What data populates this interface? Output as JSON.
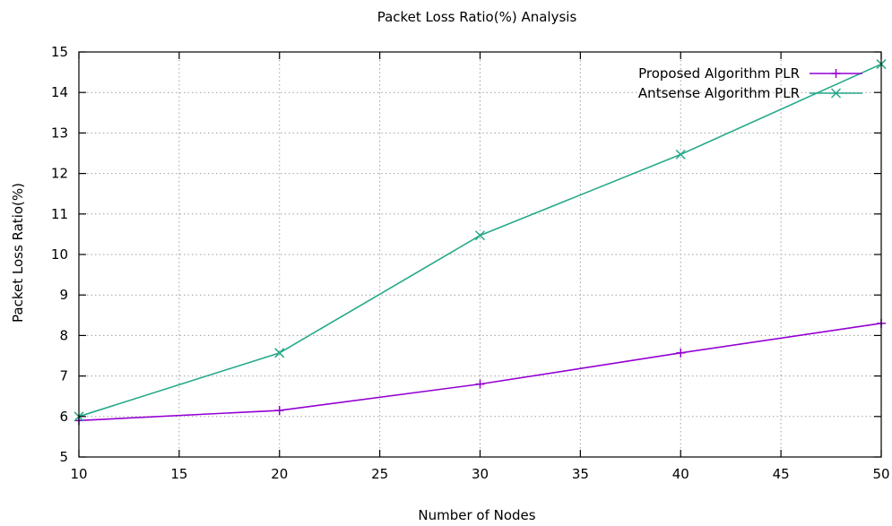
{
  "chart_data": {
    "type": "line",
    "title": "Packet Loss Ratio(%) Analysis",
    "xlabel": "Number of Nodes",
    "ylabel": "Packet Loss Ratio(%)",
    "xlim": [
      10,
      50
    ],
    "ylim": [
      5,
      15
    ],
    "xticks": [
      10,
      15,
      20,
      25,
      30,
      35,
      40,
      45,
      50
    ],
    "yticks": [
      5,
      6,
      7,
      8,
      9,
      10,
      11,
      12,
      13,
      14,
      15
    ],
    "grid": true,
    "legend_position": "top-right",
    "series": [
      {
        "name": "Proposed Algorithm PLR",
        "color": "#9400d3",
        "marker": "plus",
        "x": [
          10,
          20,
          30,
          40,
          50
        ],
        "y": [
          5.9,
          6.15,
          6.8,
          7.57,
          8.3
        ]
      },
      {
        "name": "Antsense Algorithm PLR",
        "color": "#26a98a",
        "marker": "cross",
        "x": [
          10,
          20,
          30,
          40,
          50
        ],
        "y": [
          6.0,
          7.57,
          10.47,
          12.47,
          14.7
        ]
      }
    ]
  }
}
